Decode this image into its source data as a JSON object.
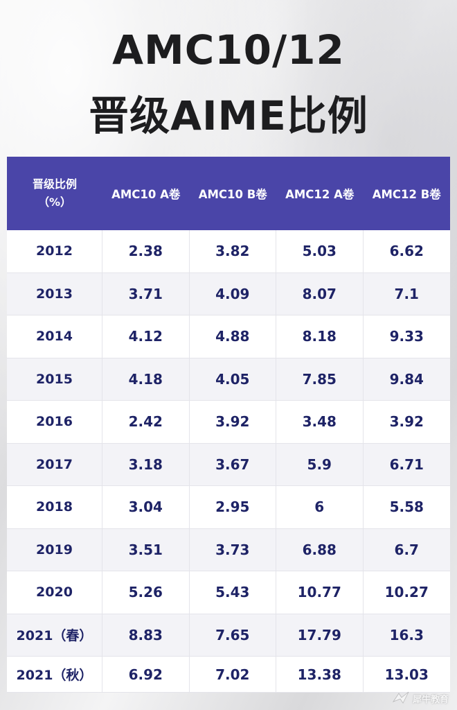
{
  "title": {
    "line1": "AMC10/12",
    "line2": "晋级AIME比例"
  },
  "colors": {
    "header_bg": "#4a45a8",
    "header_text": "#ffffff",
    "cell_text": "#1e2366",
    "title_text": "#1d1d1f"
  },
  "table": {
    "header": {
      "first_line1": "晋级比例",
      "first_line2": "（%）",
      "columns": [
        "AMC10 A卷",
        "AMC10 B卷",
        "AMC12 A卷",
        "AMC12 B卷"
      ]
    },
    "rows": [
      {
        "year": "2012",
        "values": [
          "2.38",
          "3.82",
          "5.03",
          "6.62"
        ]
      },
      {
        "year": "2013",
        "values": [
          "3.71",
          "4.09",
          "8.07",
          "7.1"
        ]
      },
      {
        "year": "2014",
        "values": [
          "4.12",
          "4.88",
          "8.18",
          "9.33"
        ]
      },
      {
        "year": "2015",
        "values": [
          "4.18",
          "4.05",
          "7.85",
          "9.84"
        ]
      },
      {
        "year": "2016",
        "values": [
          "2.42",
          "3.92",
          "3.48",
          "3.92"
        ]
      },
      {
        "year": "2017",
        "values": [
          "3.18",
          "3.67",
          "5.9",
          "6.71"
        ]
      },
      {
        "year": "2018",
        "values": [
          "3.04",
          "2.95",
          "6",
          "5.58"
        ]
      },
      {
        "year": "2019",
        "values": [
          "3.51",
          "3.73",
          "6.88",
          "6.7"
        ]
      },
      {
        "year": "2020",
        "values": [
          "5.26",
          "5.43",
          "10.77",
          "10.27"
        ]
      },
      {
        "year": "2021（春）",
        "values": [
          "8.83",
          "7.65",
          "17.79",
          "16.3"
        ]
      },
      {
        "year": "2021（秋）",
        "values": [
          "6.92",
          "7.02",
          "13.38",
          "13.03"
        ]
      }
    ]
  },
  "watermark": {
    "icon": "bird-logo-icon",
    "text": "犀牛教育"
  }
}
